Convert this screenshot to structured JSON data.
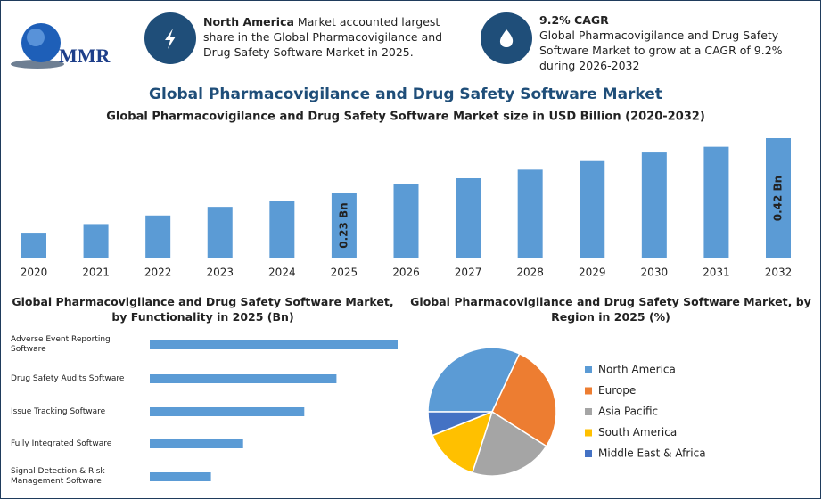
{
  "header": {
    "logo": "MMR",
    "highlights": [
      {
        "bold": "North America",
        "text": "Market accounted largest share in the Global Pharmacovigilance and Drug Safety Software Market in 2025."
      },
      {
        "bold": "9.2% CAGR",
        "text": "Global Pharmacovigilance and Drug Safety Software Market to grow at a CAGR of 9.2% during 2026-2032"
      }
    ]
  },
  "title": "Global Pharmacovigilance and Drug Safety Software Market",
  "chart_data": [
    {
      "type": "bar",
      "title": "Global Pharmacovigilance and Drug Safety Software Market size in USD Billion (2020-2032)",
      "categories": [
        "2020",
        "2021",
        "2022",
        "2023",
        "2024",
        "2025",
        "2026",
        "2027",
        "2028",
        "2029",
        "2030",
        "2031",
        "2032"
      ],
      "values": [
        0.09,
        0.12,
        0.15,
        0.18,
        0.2,
        0.23,
        0.26,
        0.28,
        0.31,
        0.34,
        0.37,
        0.39,
        0.42
      ],
      "value_labels": [
        null,
        null,
        null,
        null,
        null,
        "0.23 Bn",
        null,
        null,
        null,
        null,
        null,
        null,
        "0.42 Bn"
      ],
      "color": "#5b9bd5"
    },
    {
      "type": "hbar",
      "title": "Global Pharmacovigilance and Drug Safety Software Market, by Functionality in 2025 (Bn)",
      "categories": [
        "Adverse Event Reporting Software",
        "Drug Safety Audits Software",
        "Issue Tracking Software",
        "Fully Integrated Software",
        "Signal Detection & Risk Management Software"
      ],
      "values": [
        0.077,
        0.058,
        0.048,
        0.029,
        0.019
      ],
      "color": "#5b9bd5"
    },
    {
      "type": "pie",
      "title": "Global Pharmacovigilance and Drug Safety Software Market, by Region in 2025 (%)",
      "categories": [
        "North America",
        "Europe",
        "Asia Pacific",
        "South America",
        "Middle East & Africa"
      ],
      "values": [
        32,
        27,
        21,
        14,
        6
      ],
      "colors": [
        "#5b9bd5",
        "#ed7d31",
        "#a5a5a5",
        "#ffc000",
        "#4472c4"
      ]
    }
  ]
}
